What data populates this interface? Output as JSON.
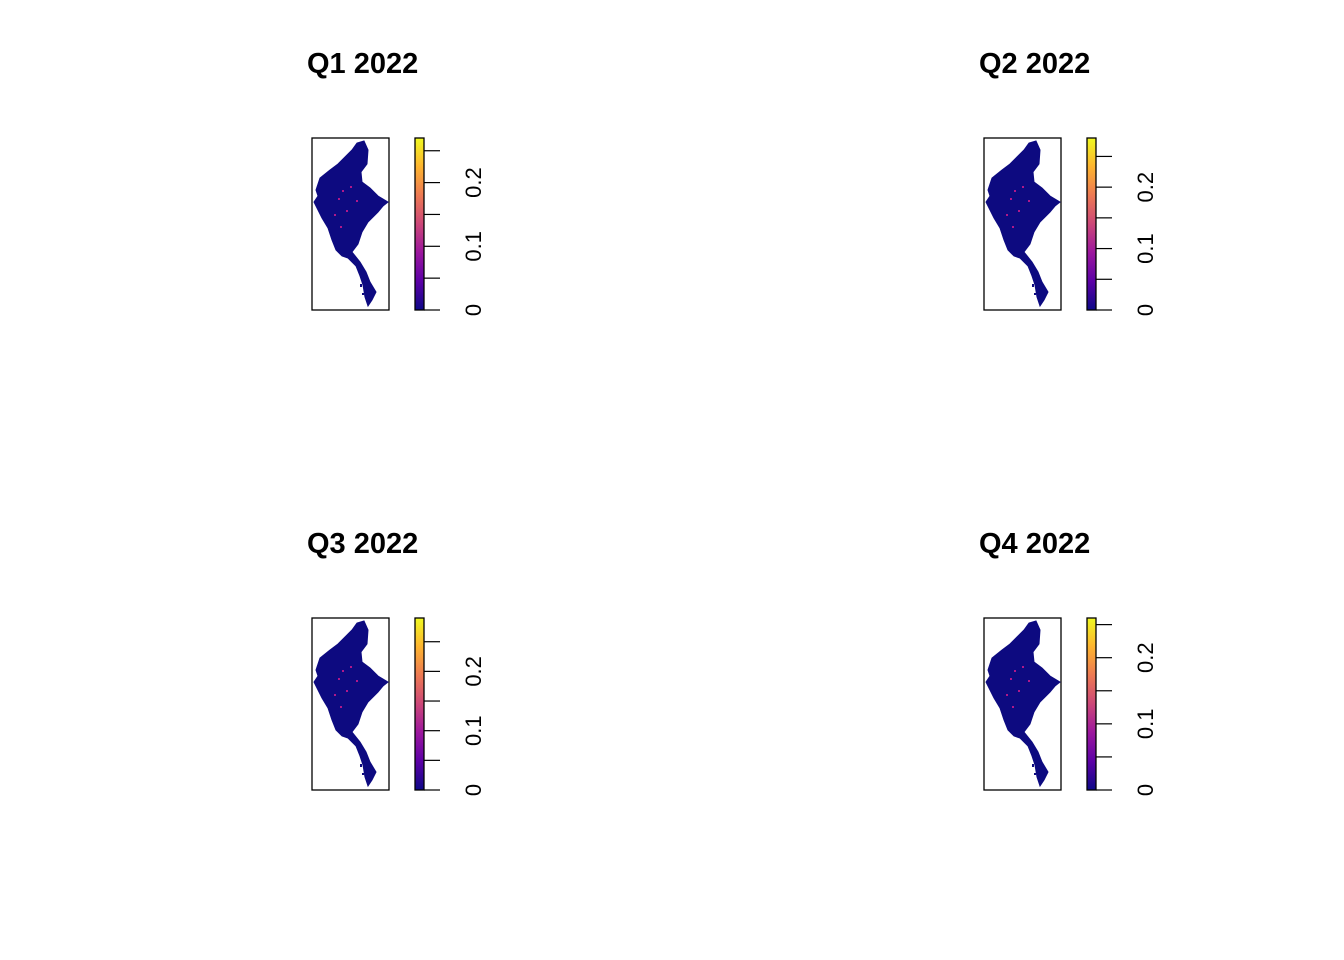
{
  "panels": [
    {
      "title": "Q1 2022",
      "legend": {
        "ticks": [
          0,
          0.1,
          0.2
        ],
        "labels": [
          "0",
          "0.1",
          "0.2"
        ],
        "min": 0,
        "max": 0.27,
        "minor_step": 0.05
      }
    },
    {
      "title": "Q2 2022",
      "legend": {
        "ticks": [
          0,
          0.1,
          0.2
        ],
        "labels": [
          "0",
          "0.1",
          "0.2"
        ],
        "min": 0,
        "max": 0.28,
        "minor_step": 0.05
      }
    },
    {
      "title": "Q3 2022",
      "legend": {
        "ticks": [
          0,
          0.1,
          0.2
        ],
        "labels": [
          "0",
          "0.1",
          "0.2"
        ],
        "min": 0,
        "max": 0.29,
        "minor_step": 0.05
      }
    },
    {
      "title": "Q4 2022",
      "legend": {
        "ticks": [
          0,
          0.1,
          0.2
        ],
        "labels": [
          "0",
          "0.1",
          "0.2"
        ],
        "min": 0,
        "max": 0.26,
        "minor_step": 0.05
      }
    }
  ],
  "colors": {
    "map_fill": "#0d0a80",
    "hotspot": "#b0188a",
    "ramp": [
      "#0d0887",
      "#5c01a6",
      "#9c179e",
      "#cc4778",
      "#ed7953",
      "#fdb42f",
      "#f0f921"
    ]
  }
}
